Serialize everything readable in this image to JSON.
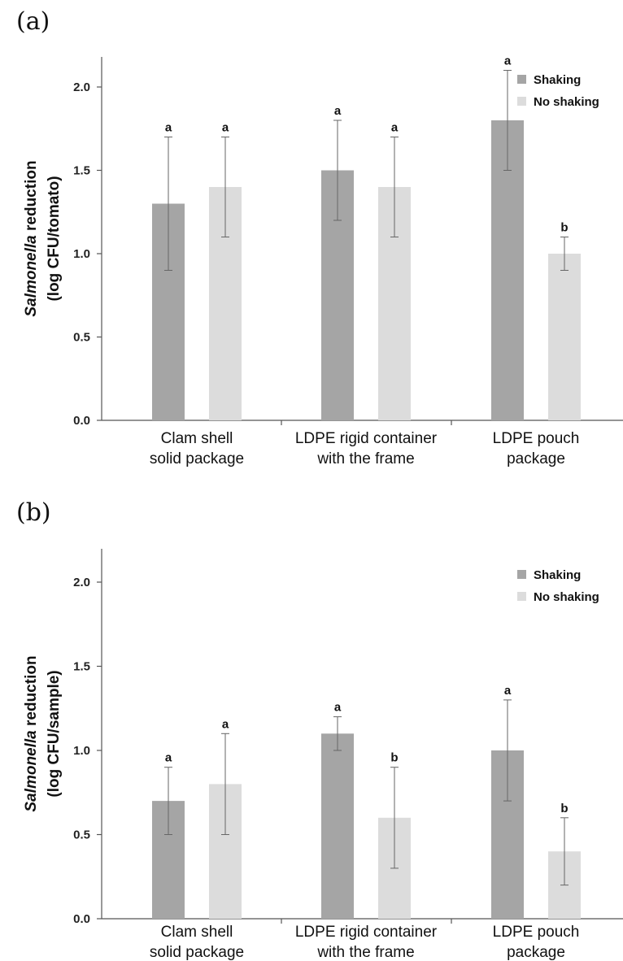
{
  "chart_data": [
    {
      "panel": "(a)",
      "type": "bar",
      "categories": [
        [
          "Clam shell",
          "solid package"
        ],
        [
          "LDPE rigid container",
          "with the frame"
        ],
        [
          "LDPE pouch",
          "package"
        ]
      ],
      "ylabel_italic": "Salmonella",
      "ylabel_rest": " reduction",
      "ylabel_units": "(log CFU/tomato)",
      "ylim": [
        0,
        2.0
      ],
      "yticks": [
        "0.0",
        "0.5",
        "1.0",
        "1.5",
        "2.0"
      ],
      "legend_position": "top-right",
      "series": [
        {
          "name": "Shaking",
          "color": "#a5a5a5",
          "values": [
            1.3,
            1.5,
            1.8
          ],
          "errors": [
            0.4,
            0.3,
            0.3
          ],
          "letters": [
            "a",
            "a",
            "a"
          ]
        },
        {
          "name": "No shaking",
          "color": "#dcdcdc",
          "values": [
            1.4,
            1.4,
            1.0
          ],
          "errors": [
            0.3,
            0.3,
            0.1
          ],
          "letters": [
            "a",
            "a",
            "b"
          ]
        }
      ]
    },
    {
      "panel": "(b)",
      "type": "bar",
      "categories": [
        [
          "Clam shell",
          "solid package"
        ],
        [
          "LDPE rigid container",
          "with the frame"
        ],
        [
          "LDPE pouch",
          "package"
        ]
      ],
      "ylabel_italic": "Salmonella",
      "ylabel_rest": " reduction",
      "ylabel_units": "(log CFU/sample)",
      "ylim": [
        0,
        2.0
      ],
      "yticks": [
        "0.0",
        "0.5",
        "1.0",
        "1.5",
        "2.0"
      ],
      "legend_position": "top-right",
      "series": [
        {
          "name": "Shaking",
          "color": "#a5a5a5",
          "values": [
            0.7,
            1.1,
            1.0
          ],
          "errors": [
            0.2,
            0.1,
            0.3
          ],
          "letters": [
            "a",
            "a",
            "a"
          ]
        },
        {
          "name": "No shaking",
          "color": "#dcdcdc",
          "values": [
            0.8,
            0.6,
            0.4
          ],
          "errors": [
            0.3,
            0.3,
            0.2
          ],
          "letters": [
            "a",
            "b",
            "b"
          ]
        }
      ]
    }
  ]
}
